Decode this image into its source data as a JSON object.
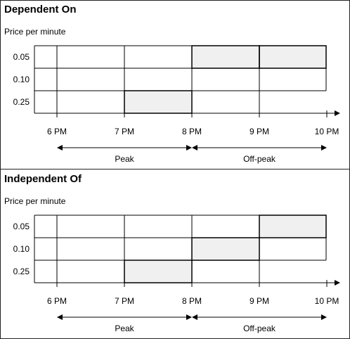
{
  "panels": [
    {
      "title": "Dependent On",
      "axis_caption": "Price per minute",
      "price_levels": [
        "0.05",
        "0.10",
        "0.25"
      ],
      "time_labels": [
        "6 PM",
        "7 PM",
        "8 PM",
        "9 PM",
        "10 PM"
      ],
      "periods": [
        {
          "label": "Peak",
          "from": "6 PM",
          "to": "8 PM"
        },
        {
          "label": "Off-peak",
          "from": "8 PM",
          "to": "10 PM"
        }
      ],
      "selected_cells": [
        {
          "price": "0.25",
          "from": "7 PM",
          "to": "8 PM"
        },
        {
          "price": "0.05",
          "from": "8 PM",
          "to": "9 PM"
        },
        {
          "price": "0.05",
          "from": "9 PM",
          "to": "10 PM"
        }
      ]
    },
    {
      "title": "Independent Of",
      "axis_caption": "Price per minute",
      "price_levels": [
        "0.05",
        "0.10",
        "0.25"
      ],
      "time_labels": [
        "6 PM",
        "7 PM",
        "8 PM",
        "9 PM",
        "10 PM"
      ],
      "periods": [
        {
          "label": "Peak",
          "from": "6 PM",
          "to": "8 PM"
        },
        {
          "label": "Off-peak",
          "from": "8 PM",
          "to": "10 PM"
        }
      ],
      "selected_cells": [
        {
          "price": "0.25",
          "from": "7 PM",
          "to": "8 PM"
        },
        {
          "price": "0.10",
          "from": "8 PM",
          "to": "9 PM"
        },
        {
          "price": "0.05",
          "from": "9 PM",
          "to": "10 PM"
        }
      ]
    }
  ],
  "colors": {
    "line": "#000000",
    "selected_fill": "#f0f0f0"
  }
}
